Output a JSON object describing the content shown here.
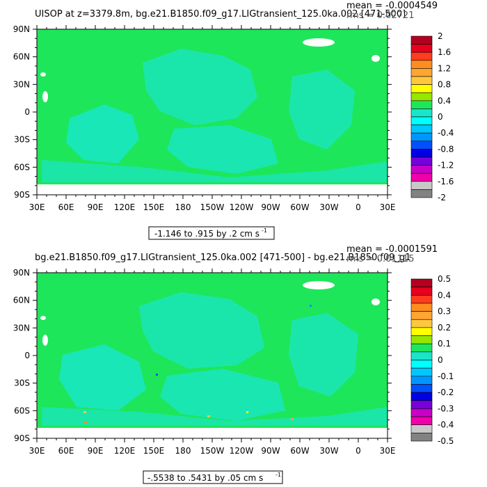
{
  "colors": {
    "land": "#ffffff",
    "near_zero_positive": "#1ee65a",
    "near_zero_negative": "#19e6c8",
    "ice_land": "#ffffff"
  },
  "chart_data": [
    {
      "type": "heatmap",
      "title": "UISOP at z=3379.8m, bg.e21.B1850.f09_g17.LIGtransient_125.0ka.002 [471-500]",
      "stats": {
        "mean": "mean = -0.0004549",
        "rms": "rms = 0.02721"
      },
      "contour_info": "-1.146 to .915 by .2 cm s",
      "contour_info_superscript": "-1",
      "x_ticks": [
        "30E",
        "60E",
        "90E",
        "120E",
        "150E",
        "180",
        "150W",
        "120W",
        "90W",
        "60W",
        "30W",
        "0",
        "30E"
      ],
      "y_ticks": [
        "90N",
        "60N",
        "30N",
        "0",
        "30S",
        "60S",
        "90S"
      ],
      "colorbar": {
        "labels": [
          "2",
          "1.6",
          "1.2",
          "0.8",
          "0.4",
          "0",
          "-0.4",
          "-0.8",
          "-1.2",
          "-1.6",
          "-2"
        ],
        "colors": [
          "#b4001e",
          "#e6001e",
          "#ff3c1e",
          "#ff8c1e",
          "#ffa532",
          "#ffc83c",
          "#ffff00",
          "#96e600",
          "#1ee65a",
          "#19e6c8",
          "#00ffff",
          "#00c8ff",
          "#0096ff",
          "#0050ff",
          "#0000e6",
          "#7800dc",
          "#c800c8",
          "#f000aa",
          "#c8c8c8",
          "#828282"
        ]
      }
    },
    {
      "type": "heatmap",
      "title": "bg.e21.B1850.f09_g17.LIGtransient_125.0ka.002 [471-500] - bg.e21.B1850.f09_g1",
      "stats": {
        "mean": "mean = -0.0001591",
        "rms": "rms = 0.01115"
      },
      "contour_info": "-.5538 to .5431 by .05 cm s",
      "contour_info_superscript": "-1",
      "x_ticks": [
        "30E",
        "60E",
        "90E",
        "120E",
        "150E",
        "180",
        "150W",
        "120W",
        "90W",
        "60W",
        "30W",
        "0",
        "30E"
      ],
      "y_ticks": [
        "90N",
        "60N",
        "30N",
        "0",
        "30S",
        "60S",
        "90S"
      ],
      "colorbar": {
        "labels": [
          "0.5",
          "0.4",
          "0.3",
          "0.2",
          "0.1",
          "0",
          "-0.1",
          "-0.2",
          "-0.3",
          "-0.4",
          "-0.5"
        ],
        "colors": [
          "#b4001e",
          "#e6001e",
          "#ff3c1e",
          "#ff8c1e",
          "#ffa532",
          "#ffc83c",
          "#ffff00",
          "#96e600",
          "#1ee65a",
          "#19e6c8",
          "#00ffff",
          "#00c8ff",
          "#0096ff",
          "#0050ff",
          "#0000e6",
          "#7800dc",
          "#c800c8",
          "#f000aa",
          "#c8c8c8",
          "#828282"
        ]
      }
    }
  ]
}
